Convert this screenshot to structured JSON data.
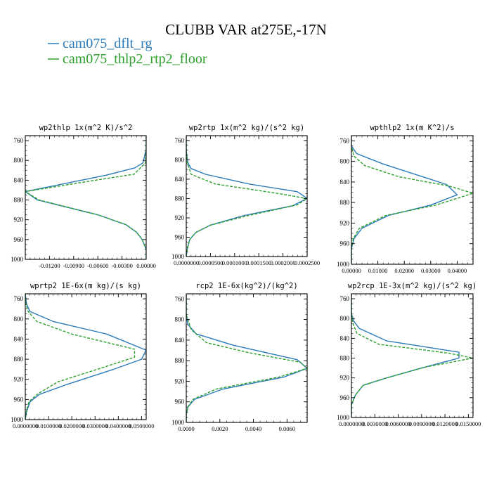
{
  "figure": {
    "title": "CLUBB VAR at275E,-17N",
    "legend": [
      {
        "label": "cam075_dflt_rg",
        "color": "#2b7bba",
        "dash": "solid"
      },
      {
        "label": "cam075_thlp2_rtp2_floor",
        "color": "#2ca02c",
        "dash": "dashed"
      }
    ]
  },
  "chart_data": [
    {
      "type": "line",
      "title": "wp2thlp  1x(m^2 K)/s^2",
      "xlim": [
        -0.015,
        0.0
      ],
      "ylim": [
        1000,
        750
      ],
      "xticks": [
        -0.012,
        -0.009,
        -0.006,
        -0.003,
        0.0
      ],
      "xtick_labels": [
        "-0.01200",
        "-0.00900",
        "-0.00600",
        "-0.00300",
        "0.00000"
      ],
      "yticks": [
        760,
        800,
        840,
        880,
        920,
        960,
        1000
      ],
      "series": [
        {
          "name": "cam075_dflt_rg",
          "x": [
            0.0,
            0.0,
            -0.0004,
            -0.0014,
            -0.005,
            -0.015,
            -0.0135,
            -0.006,
            -0.0025,
            -0.0012,
            -0.0005,
            0.0,
            0.0
          ],
          "y": [
            750,
            778,
            805,
            815,
            830,
            863,
            880,
            910,
            930,
            945,
            960,
            980,
            1000
          ]
        },
        {
          "name": "cam075_thlp2_rtp2_floor",
          "x": [
            0.0,
            0.0,
            -0.0001,
            -0.0015,
            -0.0063,
            -0.015,
            -0.0133,
            -0.006,
            -0.0025,
            -0.0012,
            -0.0005,
            0.0,
            0.0
          ],
          "y": [
            750,
            778,
            805,
            828,
            840,
            863,
            880,
            910,
            930,
            945,
            960,
            980,
            1000
          ]
        }
      ]
    },
    {
      "type": "line",
      "title": "wp2rtp  1x(m^2 kg)/(s^2 kg)",
      "xlim": [
        0.0,
        0.00025
      ],
      "ylim": [
        1000,
        750
      ],
      "xticks": [
        0.0,
        5e-05,
        0.0001,
        0.00015,
        0.0002,
        0.00025
      ],
      "xtick_labels": [
        "0.0000000",
        "0.0000500",
        "0.0001000",
        "0.0001500",
        "0.0002000",
        "0.0002500"
      ],
      "yticks": [
        760,
        800,
        840,
        880,
        920,
        960,
        1000
      ],
      "series": [
        {
          "name": "cam075_dflt_rg",
          "x": [
            0.0,
            0.0,
            3e-06,
            1e-05,
            4e-05,
            0.00013,
            0.00023,
            0.00025,
            0.00022,
            0.00012,
            5e-05,
            2e-05,
            7e-06,
            2e-06,
            0.0
          ],
          "y": [
            750,
            780,
            805,
            818,
            830,
            850,
            866,
            880,
            895,
            915,
            935,
            950,
            965,
            985,
            1000
          ]
        },
        {
          "name": "cam075_thlp2_rtp2_floor",
          "x": [
            0.0,
            0.0,
            2e-06,
            1e-05,
            6e-05,
            0.00018,
            0.00025,
            0.00023,
            0.00013,
            5e-05,
            2e-05,
            7e-06,
            2e-06,
            0.0
          ],
          "y": [
            750,
            780,
            805,
            830,
            850,
            868,
            880,
            893,
            915,
            935,
            950,
            965,
            985,
            1000
          ]
        }
      ]
    },
    {
      "type": "line",
      "title": "wpthlp2  1x(m K^2)/s",
      "xlim": [
        0.0,
        0.046
      ],
      "ylim": [
        1000,
        750
      ],
      "xticks": [
        0.0,
        0.01,
        0.02,
        0.03,
        0.04
      ],
      "xtick_labels": [
        "0.00000",
        "0.01000",
        "0.02000",
        "0.03000",
        "0.04000"
      ],
      "yticks": [
        760,
        800,
        840,
        880,
        920,
        960,
        1000
      ],
      "series": [
        {
          "name": "cam075_dflt_rg",
          "x": [
            0.0,
            0.0,
            0.002,
            0.012,
            0.036,
            0.04,
            0.03,
            0.014,
            0.004,
            0.001,
            0.0,
            0.0
          ],
          "y": [
            750,
            770,
            785,
            805,
            845,
            865,
            885,
            905,
            930,
            950,
            970,
            1000
          ]
        },
        {
          "name": "cam075_thlp2_rtp2_floor",
          "x": [
            0.0,
            0.0,
            0.001,
            0.005,
            0.018,
            0.037,
            0.046,
            0.032,
            0.013,
            0.003,
            0.0007,
            0.0,
            0.0
          ],
          "y": [
            750,
            770,
            790,
            808,
            830,
            848,
            862,
            885,
            905,
            930,
            950,
            970,
            1000
          ]
        }
      ]
    },
    {
      "type": "line",
      "title": "wprtp2  1E-6x(m kg)/(s kg)",
      "xlim": [
        0.0,
        0.052
      ],
      "ylim": [
        1000,
        750
      ],
      "xticks": [
        0.0,
        0.01,
        0.02,
        0.03,
        0.04,
        0.05
      ],
      "xtick_labels": [
        "0.0000000",
        "0.0100000",
        "0.0200000",
        "0.0300000",
        "0.0400000",
        "0.0500000"
      ],
      "yticks": [
        760,
        800,
        840,
        880,
        920,
        960,
        1000
      ],
      "series": [
        {
          "name": "cam075_dflt_rg",
          "x": [
            0.0,
            0.0005,
            0.002,
            0.012,
            0.035,
            0.052,
            0.05,
            0.038,
            0.018,
            0.006,
            0.002,
            0.0005,
            0.0
          ],
          "y": [
            750,
            770,
            785,
            805,
            830,
            862,
            880,
            900,
            930,
            950,
            965,
            985,
            1000
          ]
        },
        {
          "name": "cam075_thlp2_rtp2_floor",
          "x": [
            0.0,
            0.0002,
            0.0012,
            0.005,
            0.02,
            0.047,
            0.047,
            0.031,
            0.014,
            0.005,
            0.0015,
            0.0004,
            0.0
          ],
          "y": [
            750,
            770,
            785,
            805,
            830,
            860,
            876,
            900,
            925,
            950,
            965,
            985,
            1000
          ]
        }
      ]
    },
    {
      "type": "line",
      "title": "rcp2  1E-6x(kg^2)/(kg^2)",
      "xlim": [
        0.0,
        0.0072
      ],
      "ylim": [
        1000,
        750
      ],
      "xticks": [
        0.0,
        0.002,
        0.004,
        0.006
      ],
      "xtick_labels": [
        "0.0000",
        "0.0020",
        "0.0040",
        "0.0060"
      ],
      "yticks": [
        760,
        800,
        840,
        880,
        920,
        960,
        1000
      ],
      "series": [
        {
          "name": "cam075_dflt_rg",
          "x": [
            0.0,
            0.0,
            0.0001,
            0.0006,
            0.0028,
            0.0066,
            0.0072,
            0.0058,
            0.0022,
            0.0005,
            0.0001,
            0.0,
            0.0
          ],
          "y": [
            750,
            790,
            810,
            828,
            850,
            878,
            895,
            912,
            935,
            955,
            970,
            985,
            1000
          ]
        },
        {
          "name": "cam075_thlp2_rtp2_floor",
          "x": [
            0.0,
            0.0,
            0.0003,
            0.0012,
            0.0038,
            0.0068,
            0.0072,
            0.0055,
            0.0018,
            0.0004,
            0.0001,
            0.0,
            0.0
          ],
          "y": [
            750,
            790,
            820,
            845,
            865,
            883,
            895,
            912,
            935,
            955,
            970,
            985,
            1000
          ]
        }
      ]
    },
    {
      "type": "line",
      "title": "wp2rcp  1E-3x(m^2 kg)/(s^2 kg)",
      "xlim": [
        0.0,
        0.0156
      ],
      "ylim": [
        1000,
        750
      ],
      "xticks": [
        0.0,
        0.003,
        0.006,
        0.009,
        0.012,
        0.015
      ],
      "xtick_labels": [
        "0.0000000",
        "0.0030000",
        "0.0060000",
        "0.0090000",
        "0.0120000",
        "0.0150000"
      ],
      "yticks": [
        760,
        800,
        840,
        880,
        920,
        960,
        1000
      ],
      "series": [
        {
          "name": "cam075_dflt_rg",
          "x": [
            0.0,
            0.0,
            0.0003,
            0.001,
            0.0045,
            0.0138,
            0.0138,
            0.009,
            0.0045,
            0.0015,
            0.0005,
            0.0,
            0.0
          ],
          "y": [
            750,
            790,
            805,
            820,
            845,
            868,
            880,
            900,
            920,
            935,
            955,
            975,
            1000
          ]
        },
        {
          "name": "cam075_thlp2_rtp2_floor",
          "x": [
            0.0,
            0.0,
            0.0002,
            0.0007,
            0.0035,
            0.0125,
            0.0156,
            0.0095,
            0.0045,
            0.0015,
            0.0005,
            0.0,
            0.0
          ],
          "y": [
            750,
            790,
            810,
            830,
            852,
            870,
            880,
            898,
            920,
            935,
            955,
            975,
            1000
          ]
        }
      ]
    }
  ]
}
